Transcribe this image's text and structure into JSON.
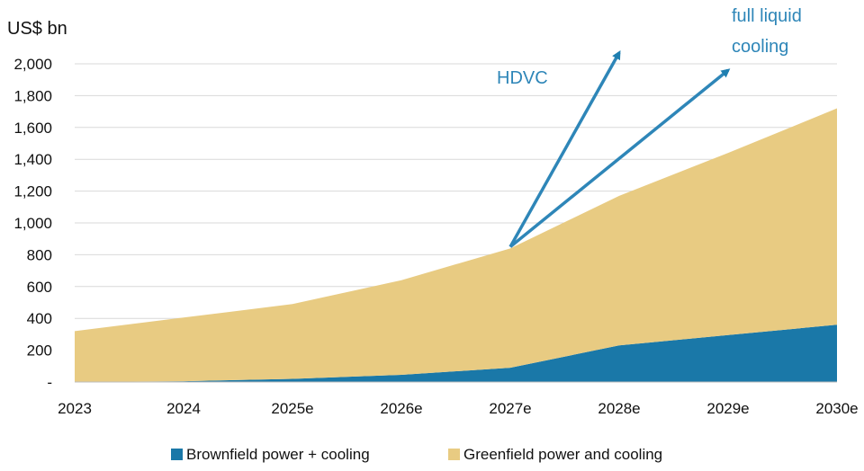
{
  "chart_data": {
    "type": "area",
    "stacked": true,
    "y_unit_label": "US$ bn",
    "categories": [
      "2023",
      "2024",
      "2025e",
      "2026e",
      "2027e",
      "2028e",
      "2029e",
      "2030e"
    ],
    "y_ticks": [
      0,
      200,
      400,
      600,
      800,
      1000,
      1200,
      1400,
      1600,
      1800,
      2000
    ],
    "y_tick_labels": [
      "-",
      "200",
      "400",
      "600",
      "800",
      "1,000",
      "1,200",
      "1,400",
      "1,600",
      "1,800",
      "2,000"
    ],
    "ylim": [
      0,
      2000
    ],
    "grid": true,
    "series": [
      {
        "name": "Brownfield power + cooling",
        "color": "#1a78a8",
        "values": [
          0,
          5,
          20,
          45,
          90,
          230,
          295,
          360
        ]
      },
      {
        "name": "Greenfield power and cooling",
        "color": "#e8cb82",
        "values": [
          320,
          400,
          470,
          595,
          750,
          940,
          1145,
          1360
        ]
      }
    ],
    "annotations": [
      {
        "text": "HDVC",
        "color": "#2e86b8",
        "arrow_from": {
          "x": "2027e",
          "y": 850
        },
        "arrow_to": {
          "x": "2028e",
          "y": 2070
        }
      },
      {
        "text_lines": [
          "full liquid",
          "cooling"
        ],
        "color": "#2e86b8",
        "arrow_from": {
          "x": "2027e",
          "y": 850
        },
        "arrow_to": {
          "x": "2029e",
          "y": 1960
        }
      }
    ],
    "legend_position": "bottom"
  }
}
